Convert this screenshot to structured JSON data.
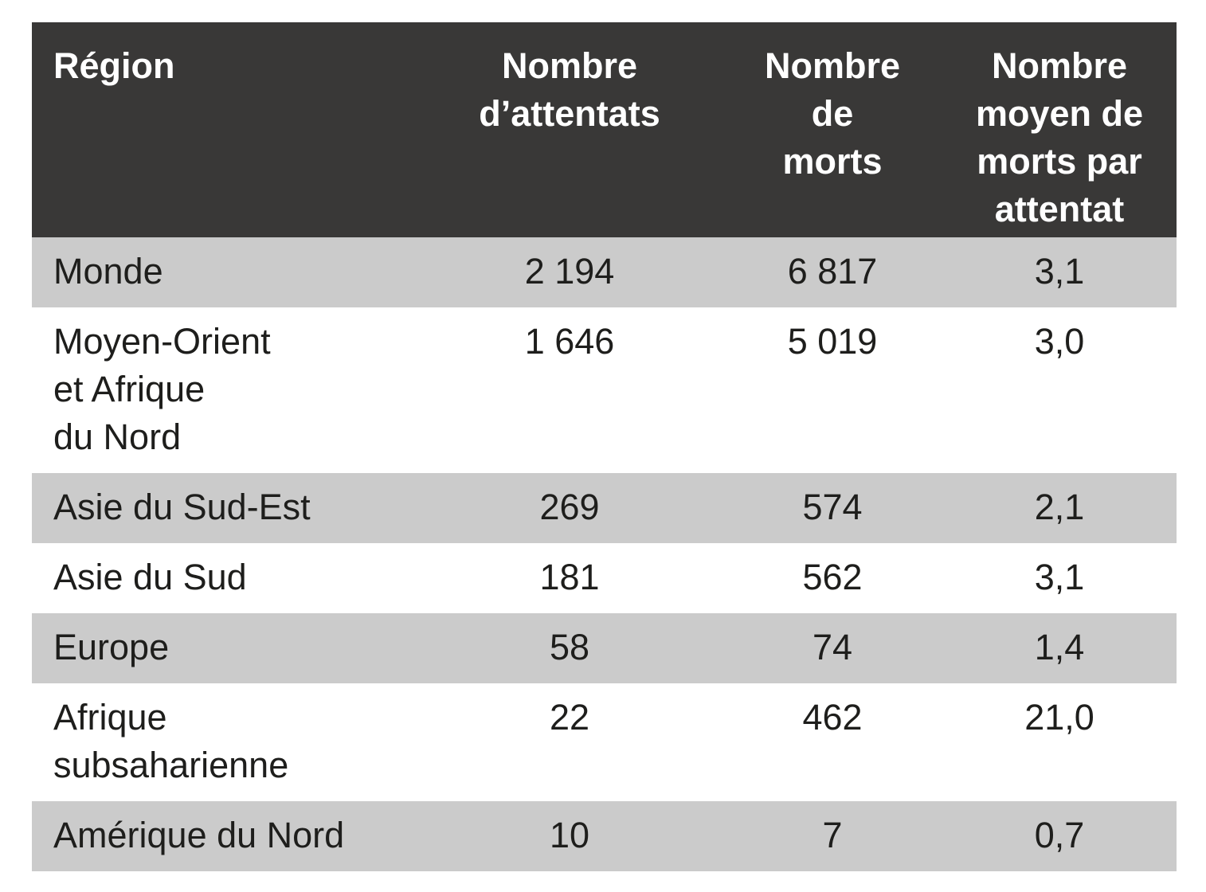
{
  "colors": {
    "header_bg": "#393837",
    "header_text": "#ffffff",
    "row_alt_bg": "#cbcbcb",
    "row_bg": "#ffffff",
    "text": "#1e1e1c"
  },
  "table": {
    "columns": [
      {
        "label": [
          "Région"
        ]
      },
      {
        "label": [
          "Nombre",
          "d’attentats"
        ]
      },
      {
        "label": [
          "Nombre",
          "de",
          "morts"
        ]
      },
      {
        "label": [
          "Nombre",
          "moyen de",
          "morts par",
          "attentat"
        ]
      }
    ],
    "rows": [
      {
        "region": [
          "Monde"
        ],
        "attacks": "2 194",
        "deaths": "6 817",
        "avg": "3,1"
      },
      {
        "region": [
          "Moyen-Orient",
          "et Afrique",
          "du Nord"
        ],
        "attacks": "1 646",
        "deaths": "5 019",
        "avg": "3,0"
      },
      {
        "region": [
          "Asie du Sud-Est"
        ],
        "attacks": "269",
        "deaths": "574",
        "avg": "2,1"
      },
      {
        "region": [
          "Asie du Sud"
        ],
        "attacks": "181",
        "deaths": "562",
        "avg": "3,1"
      },
      {
        "region": [
          "Europe"
        ],
        "attacks": "58",
        "deaths": "74",
        "avg": "1,4"
      },
      {
        "region": [
          "Afrique",
          "subsaharienne"
        ],
        "attacks": "22",
        "deaths": "462",
        "avg": "21,0"
      },
      {
        "region": [
          "Amérique du Nord"
        ],
        "attacks": "10",
        "deaths": "7",
        "avg": "0,7"
      }
    ]
  },
  "chart_data": {
    "type": "table",
    "columns": [
      "Région",
      "Nombre d’attentats",
      "Nombre de morts",
      "Nombre moyen de morts par attentat"
    ],
    "rows": [
      [
        "Monde",
        2194,
        6817,
        3.1
      ],
      [
        "Moyen-Orient et Afrique du Nord",
        1646,
        5019,
        3.0
      ],
      [
        "Asie du Sud-Est",
        269,
        574,
        2.1
      ],
      [
        "Asie du Sud",
        181,
        562,
        3.1
      ],
      [
        "Europe",
        58,
        74,
        1.4
      ],
      [
        "Afrique subsaharienne",
        22,
        462,
        21.0
      ],
      [
        "Amérique du Nord",
        10,
        7,
        0.7
      ]
    ]
  }
}
